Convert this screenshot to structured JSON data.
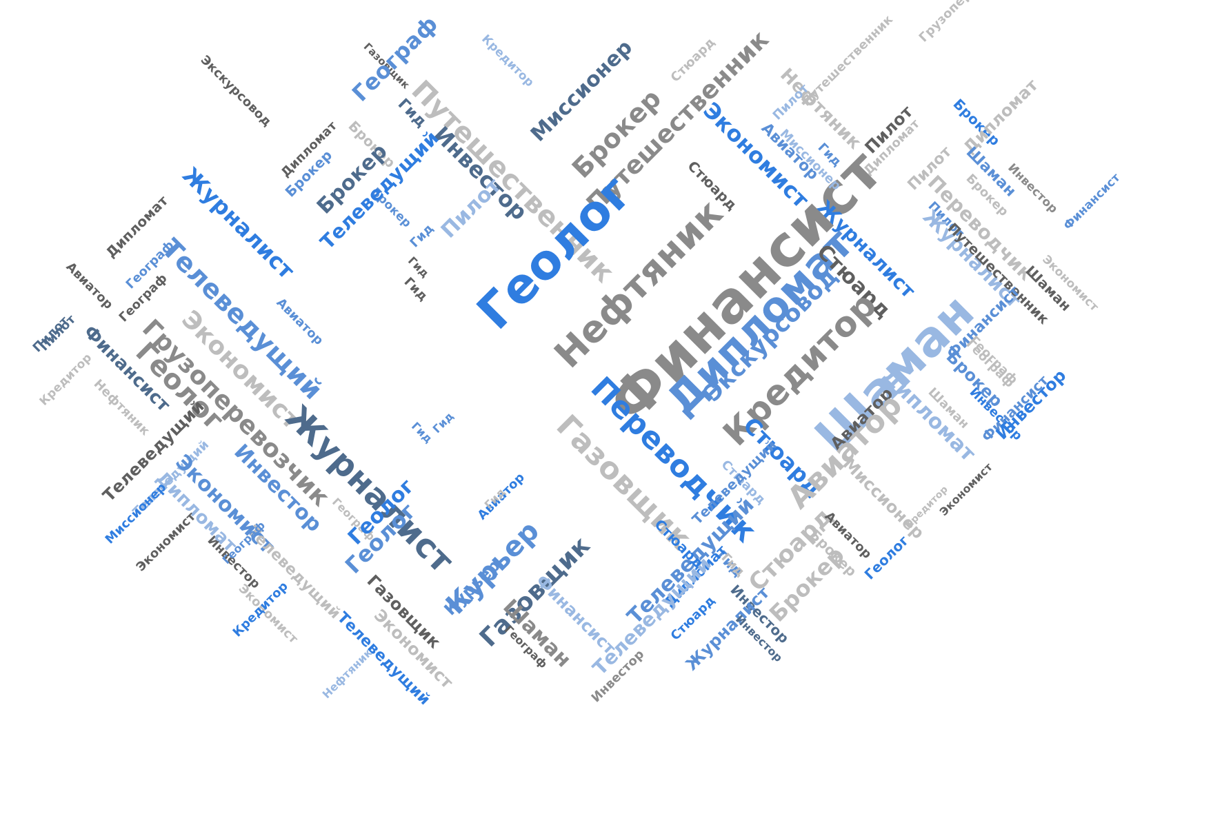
{
  "colors": {
    "blue_bright": "#2f7de0",
    "blue_mid": "#5a8fd6",
    "blue_light": "#7fa6d9",
    "blue_pale": "#99b8e2",
    "slate": "#4e6b8c",
    "gray_dark": "#5f5f5f",
    "gray_mid": "#8a8a8a",
    "gray_light": "#bdbdbd"
  },
  "words": [
    "Экскурсовод",
    "Газовщик",
    "Кредитор",
    "Миссионер",
    "Стюард",
    "Брокер",
    "Путешественник",
    "Нефтяник",
    "Пилот",
    "Грузоперевозчик",
    "Географ",
    "Гид",
    "Путешественник",
    "Брокер",
    "Экономист",
    "Авиатор",
    "Гид",
    "Пилот",
    "Дипломат",
    "Брокер",
    "Дипломат",
    "Инвестор",
    "Стюард",
    "Путешественник",
    "Пилот",
    "Дипломат",
    "Брокер",
    "Шаман",
    "Журналист",
    "Брокер",
    "Брокер",
    "Брокер",
    "Пилот",
    "Переводчик",
    "Инвестор",
    "Телеведущий",
    "Гид",
    "Геолог",
    "Нефтяник",
    "Финансист",
    "Дипломат",
    "Журналист",
    "Путешественник",
    "Финансист",
    "Экономист",
    "Шаман",
    "Дипломат",
    "Авиатор",
    "Телеведущий",
    "Гид",
    "Стюард",
    "Географ",
    "Пилот",
    "Журналист",
    "Географ",
    "Авиатор",
    "Экскурсовод",
    "Кредитор",
    "Шаман",
    "Финансист",
    "Финансист",
    "Географ",
    "Пилот",
    "Экономист",
    "Грузоперевозчик",
    "Брокер",
    "Кредитор",
    "Нефтяник",
    "Финансист",
    "Стюард",
    "Авиатор",
    "Гид",
    "Геолог",
    "Телеведущий",
    "Переводчик",
    "Газовщик",
    "Шаман",
    "Дипломат",
    "Инвестор",
    "Кредитор",
    "Стюард",
    "Инвестор",
    "Журналист",
    "Телеведущий",
    "Экономист",
    "Инвестор",
    "Географ",
    "Авиатор",
    "Курьер",
    "Геолог",
    "Дипломат",
    "Экономист",
    "Стюард",
    "Авиатор",
    "Миссионер",
    "Миссионер",
    "Телеведущий",
    "Гид",
    "Экономист",
    "Геолог",
    "Инвестор",
    "Гид",
    "Телеведущий",
    "Авиатор",
    "Брокер",
    "Экономист",
    "Курьер",
    "Газовщик",
    "Брокер",
    "Геолог",
    "Телеведущий",
    "Газовщик",
    "Финансист",
    "Дипломат",
    "Гид",
    "Телеведущий",
    "Стюард",
    "Кредитор",
    "Экономист",
    "Шаман",
    "Журналист",
    "Инвестор",
    "Нефтяник",
    "Телеведущий",
    "Географ",
    "Инвестор",
    "Географ",
    "Миссионер",
    "Географ",
    "Пилот",
    "Гид",
    "Гид",
    "Стюард",
    "Инвестор"
  ]
}
